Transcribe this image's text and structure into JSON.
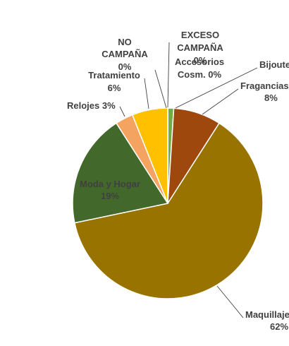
{
  "chart_data": {
    "type": "pie",
    "title": "",
    "slices": [
      {
        "name": "Bijouterie",
        "value": 1,
        "label": "",
        "color": "#70ad47"
      },
      {
        "name": "Fragancias",
        "value": 8,
        "label": "8%",
        "color": "#9e480e"
      },
      {
        "name": "Maquillaje",
        "value": 62,
        "label": "62%",
        "color": "#997300"
      },
      {
        "name": "Moda y Hogar",
        "value": 19,
        "label": "19%",
        "color": "#43682b"
      },
      {
        "name": "Relojes",
        "value": 3,
        "label": "3%",
        "color": "#f4a460"
      },
      {
        "name": "Tratamiento",
        "value": 6,
        "label": "6%",
        "color": "#ffc000"
      },
      {
        "name": "NO CAMPAÑA",
        "value": 0,
        "label": "0%",
        "color": "#4472c4"
      },
      {
        "name": "EXCESO CAMPAÑA",
        "value": 0,
        "label": "0%",
        "color": "#ed7d31"
      },
      {
        "name": "Accesorios Cosm.",
        "value": 0,
        "label": "0%",
        "color": "#a5a5a5"
      }
    ]
  }
}
